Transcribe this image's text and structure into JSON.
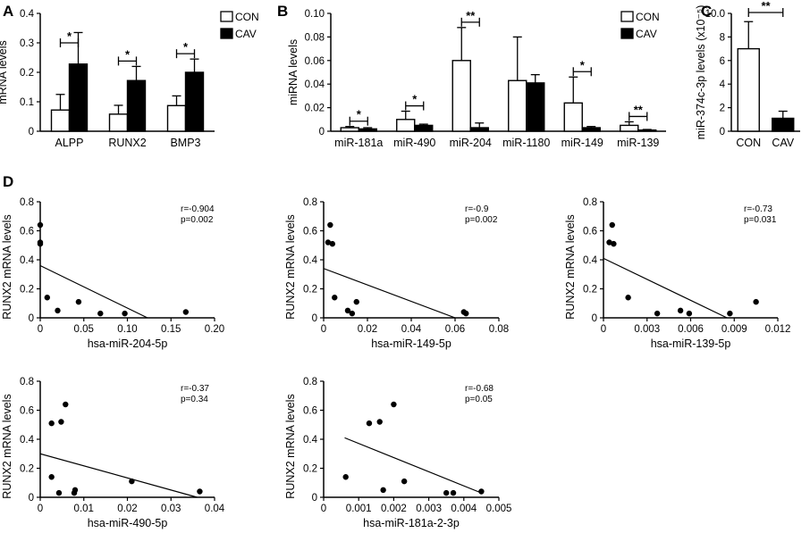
{
  "chart_data": [
    {
      "panel": "A",
      "type": "bar",
      "ylabel": "mRNA levels",
      "ylim": [
        0,
        0.4
      ],
      "yticks": [
        "0",
        "0.1",
        "0.2",
        "0.3",
        "0.4"
      ],
      "categories": [
        "ALPP",
        "RUNX2",
        "BMP3"
      ],
      "series": [
        {
          "name": "CON",
          "color": "#ffffff",
          "values": [
            0.072,
            0.058,
            0.087
          ],
          "errors": [
            0.053,
            0.03,
            0.033
          ]
        },
        {
          "name": "CAV",
          "color": "#000000",
          "values": [
            0.228,
            0.172,
            0.2
          ],
          "errors": [
            0.107,
            0.048,
            0.045
          ]
        }
      ],
      "significance": [
        "*",
        "*",
        "*"
      ],
      "legend": [
        "CON",
        "CAV"
      ]
    },
    {
      "panel": "B",
      "type": "bar",
      "ylabel": "miRNA levels",
      "ylim": [
        0,
        0.1
      ],
      "yticks": [
        "0",
        "0.02",
        "0.04",
        "0.06",
        "0.08",
        "0.10"
      ],
      "categories": [
        "miR-181a",
        "miR-490",
        "miR-204",
        "miR-1180",
        "miR-149",
        "miR-139"
      ],
      "series": [
        {
          "name": "CON",
          "color": "#ffffff",
          "values": [
            0.003,
            0.01,
            0.06,
            0.043,
            0.024,
            0.005
          ],
          "errors": [
            0.001,
            0.007,
            0.028,
            0.037,
            0.022,
            0.003
          ]
        },
        {
          "name": "CAV",
          "color": "#000000",
          "values": [
            0.002,
            0.005,
            0.003,
            0.041,
            0.003,
            0.001
          ],
          "errors": [
            0.001,
            0.001,
            0.004,
            0.007,
            0.001,
            0.0005
          ]
        }
      ],
      "significance": [
        "*",
        "*",
        "**",
        "",
        "*",
        "**"
      ],
      "legend": [
        "CON",
        "CAV"
      ]
    },
    {
      "panel": "C",
      "type": "bar",
      "ylabel": "miR-374c-3p levels (x10⁻⁵)",
      "ylim": [
        0,
        10
      ],
      "yticks": [
        "0",
        "2",
        "4",
        "6",
        "8",
        "10.0"
      ],
      "categories": [
        "CON",
        "CAV"
      ],
      "series": [
        {
          "name": "levels",
          "colors": [
            "#ffffff",
            "#000000"
          ],
          "values": [
            7.0,
            1.1
          ],
          "errors": [
            2.3,
            0.6
          ]
        }
      ],
      "significance": [
        "**"
      ]
    },
    {
      "panel": "D",
      "type": "scatter",
      "xlabel": "hsa-miR-204-5p",
      "ylabel": "RUNX2 mRNA levels",
      "xlim": [
        0,
        0.2
      ],
      "ylim": [
        0,
        0.8
      ],
      "xticks": [
        "0",
        "0.05",
        "0.10",
        "0.15",
        "0.20"
      ],
      "yticks": [
        "0",
        "0.2",
        "0.4",
        "0.6",
        "0.8"
      ],
      "points": [
        [
          0.0,
          0.64
        ],
        [
          0.0,
          0.52
        ],
        [
          0.0,
          0.51
        ],
        [
          0.008,
          0.14
        ],
        [
          0.02,
          0.05
        ],
        [
          0.044,
          0.11
        ],
        [
          0.069,
          0.03
        ],
        [
          0.097,
          0.03
        ],
        [
          0.167,
          0.04
        ]
      ],
      "fit": [
        [
          0.0,
          0.36
        ],
        [
          0.123,
          0.0
        ]
      ],
      "r": "r=-0.904",
      "p": "p=0.002"
    },
    {
      "panel": "D",
      "type": "scatter",
      "xlabel": "hsa-miR-149-5p",
      "ylabel": "RUNX2 mRNA levels",
      "xlim": [
        0,
        0.08
      ],
      "ylim": [
        0,
        0.8
      ],
      "xticks": [
        "0",
        "0.02",
        "0.04",
        "0.06",
        "0.08"
      ],
      "yticks": [
        "0",
        "0.2",
        "0.4",
        "0.6",
        "0.8"
      ],
      "points": [
        [
          0.002,
          0.52
        ],
        [
          0.003,
          0.64
        ],
        [
          0.004,
          0.51
        ],
        [
          0.005,
          0.14
        ],
        [
          0.011,
          0.05
        ],
        [
          0.013,
          0.03
        ],
        [
          0.015,
          0.11
        ],
        [
          0.064,
          0.04
        ],
        [
          0.065,
          0.03
        ]
      ],
      "fit": [
        [
          0.0,
          0.34
        ],
        [
          0.06,
          0.0
        ]
      ],
      "r": "r=-0.9",
      "p": "p=0.002"
    },
    {
      "panel": "D",
      "type": "scatter",
      "xlabel": "hsa-miR-139-5p",
      "ylabel": "RUNX2 mRNA levels",
      "xlim": [
        0,
        0.012
      ],
      "ylim": [
        0,
        0.8
      ],
      "xticks": [
        "0",
        "0.003",
        "0.006",
        "0.009",
        "0.012"
      ],
      "yticks": [
        "0",
        "0.2",
        "0.4",
        "0.6",
        "0.8"
      ],
      "points": [
        [
          0.0004,
          0.52
        ],
        [
          0.0006,
          0.64
        ],
        [
          0.0007,
          0.51
        ],
        [
          0.0017,
          0.14
        ],
        [
          0.0037,
          0.03
        ],
        [
          0.0053,
          0.05
        ],
        [
          0.0059,
          0.03
        ],
        [
          0.0087,
          0.03
        ],
        [
          0.0105,
          0.11
        ]
      ],
      "fit": [
        [
          0.0,
          0.41
        ],
        [
          0.0085,
          0.0
        ]
      ],
      "r": "r=-0.73",
      "p": "p=0.031"
    },
    {
      "panel": "D",
      "type": "scatter",
      "xlabel": "hsa-miR-490-5p",
      "ylabel": "RUNX2 mRNA levels",
      "xlim": [
        0,
        0.04
      ],
      "ylim": [
        0,
        0.8
      ],
      "xticks": [
        "0",
        "0.01",
        "0.02",
        "0.03",
        "0.04"
      ],
      "yticks": [
        "0",
        "0.2",
        "0.4",
        "0.6",
        "0.8"
      ],
      "points": [
        [
          0.0026,
          0.51
        ],
        [
          0.0026,
          0.14
        ],
        [
          0.0043,
          0.03
        ],
        [
          0.0048,
          0.52
        ],
        [
          0.0058,
          0.64
        ],
        [
          0.0078,
          0.03
        ],
        [
          0.008,
          0.05
        ],
        [
          0.021,
          0.11
        ],
        [
          0.0366,
          0.04
        ]
      ],
      "fit": [
        [
          0.0,
          0.3
        ],
        [
          0.036,
          0.0
        ]
      ],
      "r": "r=-0.37",
      "p": "p=0.34"
    },
    {
      "panel": "D",
      "type": "scatter",
      "xlabel": "hsa-miR-181a-2-3p",
      "ylabel": "RUNX2 mRNA levels",
      "xlim": [
        0,
        0.005
      ],
      "ylim": [
        0,
        0.8
      ],
      "xticks": [
        "0",
        "0.001",
        "0.002",
        "0.003",
        "0.004",
        "0.005"
      ],
      "yticks": [
        "0",
        "0.2",
        "0.4",
        "0.6",
        "0.8"
      ],
      "points": [
        [
          0.00063,
          0.14
        ],
        [
          0.0013,
          0.51
        ],
        [
          0.0016,
          0.52
        ],
        [
          0.0017,
          0.05
        ],
        [
          0.002,
          0.64
        ],
        [
          0.0023,
          0.11
        ],
        [
          0.0035,
          0.03
        ],
        [
          0.0037,
          0.03
        ],
        [
          0.0045,
          0.04
        ]
      ],
      "fit": [
        [
          0.0006,
          0.41
        ],
        [
          0.0045,
          0.03
        ]
      ],
      "r": "r=-0.68",
      "p": "p=0.05"
    }
  ]
}
